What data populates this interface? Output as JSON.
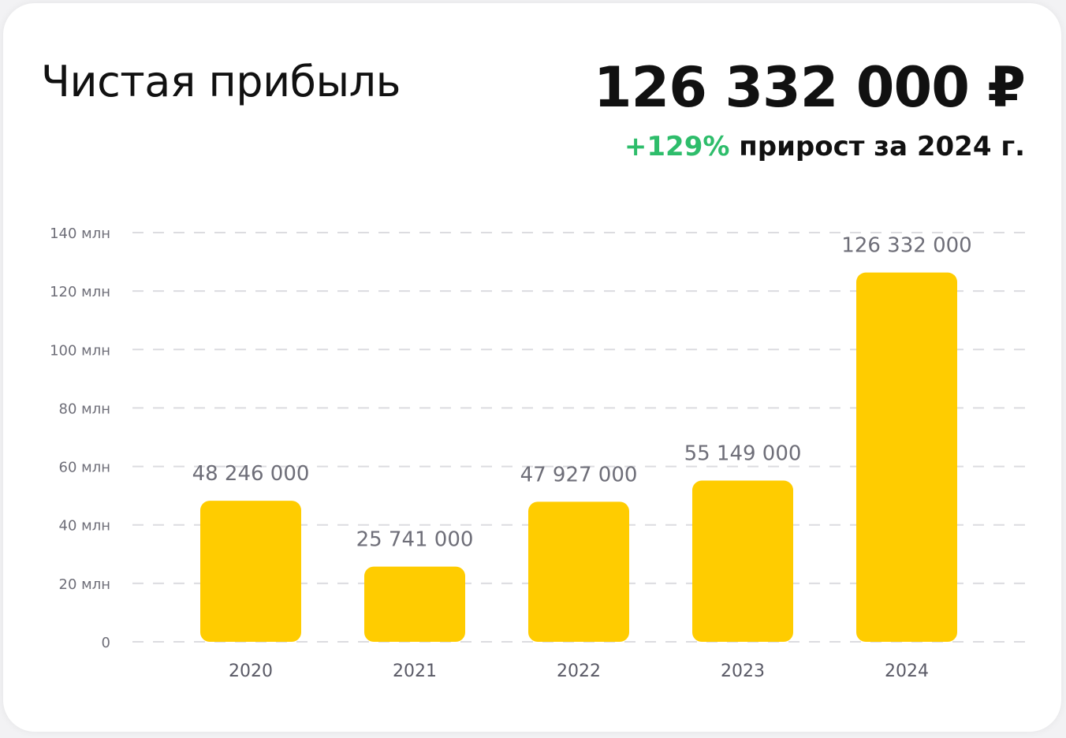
{
  "header": {
    "title": "Чистая прибыль",
    "total": "126 332 000 ₽",
    "growth_pct": "+129%",
    "growth_text": "прирост за 2024 г."
  },
  "colors": {
    "bar": "#ffcc00",
    "growth": "#2ebd6b",
    "grid": "#dcdce0",
    "text": "#111111"
  },
  "chart_data": {
    "type": "bar",
    "categories": [
      "2020",
      "2021",
      "2022",
      "2023",
      "2024"
    ],
    "values": [
      48246000,
      25741000,
      47927000,
      55149000,
      126332000
    ],
    "data_labels": [
      "48 246 000",
      "25 741 000",
      "47 927 000",
      "55 149 000",
      "126 332 000"
    ],
    "ylim": [
      0,
      140000000
    ],
    "yticks": [
      0,
      20000000,
      40000000,
      60000000,
      80000000,
      100000000,
      120000000,
      140000000
    ],
    "ytick_labels": [
      "0",
      "20 млн",
      "40 млн",
      "60 млн",
      "80 млн",
      "100 млн",
      "120 млн",
      "140 млн"
    ],
    "grid": true
  }
}
